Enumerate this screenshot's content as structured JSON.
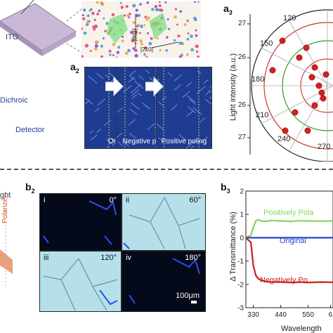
{
  "panel_a": {
    "label_main": "a",
    "label_a2": "2",
    "label_a3": "3",
    "left_labels": {
      "ito": "ITO",
      "dichroic": "Dichroic",
      "detector": "Detector"
    },
    "crystal_labels": {
      "axis_a": "[210]",
      "axis_b": "[001]"
    },
    "micro_captions": [
      "Original",
      "Negative poling",
      "Positive poling"
    ],
    "colors": {
      "micro_bg": "#1c3a8f",
      "micro_stripe": "#5f86d6",
      "polar_dot": "#d42020"
    }
  },
  "polar": {
    "ylabel": "Light intensity (a.u.)",
    "angle_labels": [
      "150",
      "120",
      "180",
      "210",
      "240",
      "270"
    ],
    "radial_labels": [
      "27",
      "26",
      "26",
      "27"
    ],
    "circle_colors": [
      "#c0392b",
      "#2e9a2e",
      "#c0392b"
    ]
  },
  "panel_b": {
    "label_b2": "b",
    "label_b2_sub": "2",
    "label_b3": "b",
    "label_b3_sub": "3",
    "left_labels": {
      "light": "ght",
      "polarizer": "Polarizer"
    },
    "tiles": [
      {
        "num": "i",
        "angle": "0°"
      },
      {
        "num": "ii",
        "angle": "60°"
      },
      {
        "num": "iii",
        "angle": "120°"
      },
      {
        "num": "iv",
        "angle": "180°"
      }
    ],
    "scalebar": "100μm"
  },
  "chart_data": {
    "type": "line",
    "title": "",
    "xlabel": "Wavelength",
    "ylabel": "Δ Transmittance (%)",
    "xticks": [
      "330",
      "440",
      "550",
      "6"
    ],
    "yticks": [
      "2",
      "1",
      "0",
      "-1",
      "-2",
      "-3"
    ],
    "xlim": [
      300,
      650
    ],
    "ylim": [
      -3,
      2
    ],
    "series": [
      {
        "name": "Positively Pola",
        "color": "#7ed957",
        "x": [
          300,
          320,
          330,
          340,
          350,
          360,
          380,
          400,
          440,
          480,
          520,
          550,
          600,
          650
        ],
        "values": [
          0.02,
          0.1,
          0.45,
          0.72,
          0.78,
          0.72,
          0.7,
          0.74,
          0.72,
          0.7,
          0.73,
          0.72,
          0.71,
          0.72
        ]
      },
      {
        "name": "Original",
        "color": "#2346c9",
        "x": [
          300,
          650
        ],
        "values": [
          0,
          0
        ]
      },
      {
        "name": "Negatively Po",
        "color": "#cc1b1b",
        "x": [
          300,
          320,
          330,
          340,
          350,
          360,
          380,
          400,
          440,
          480,
          520,
          550,
          600,
          650
        ],
        "values": [
          0,
          -0.2,
          -1.2,
          -1.62,
          -1.75,
          -1.82,
          -1.88,
          -1.9,
          -1.9,
          -1.92,
          -1.9,
          -1.92,
          -1.9,
          -1.91
        ]
      }
    ]
  }
}
